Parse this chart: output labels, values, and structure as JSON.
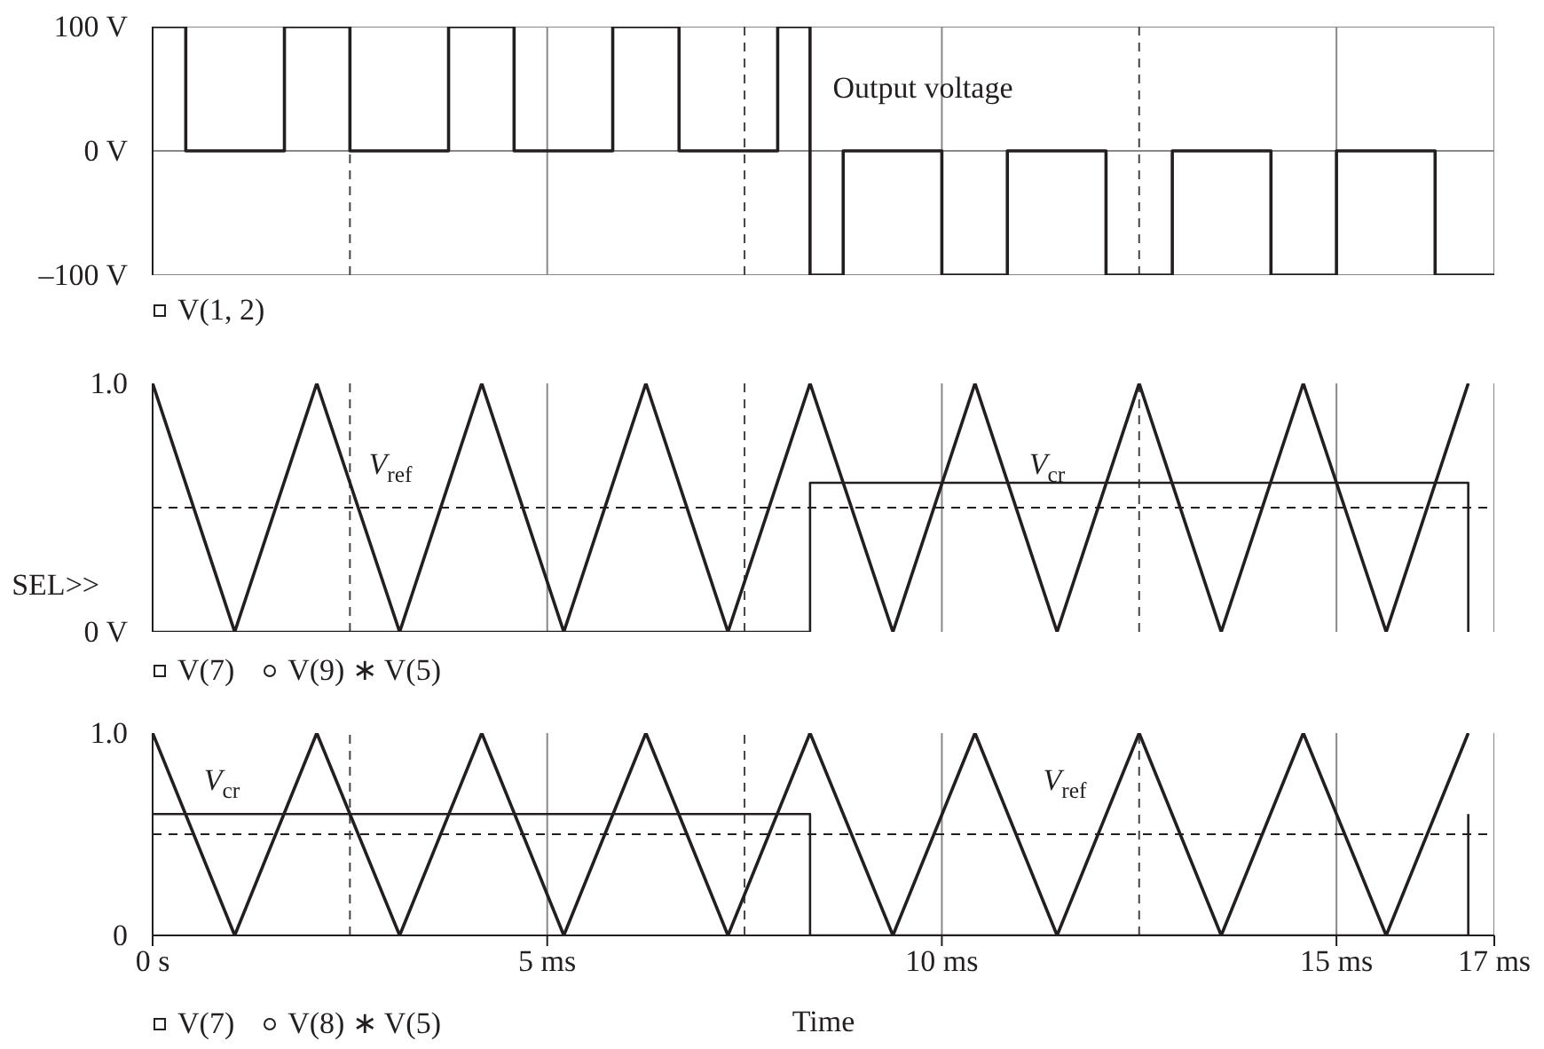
{
  "chart_data": [
    {
      "type": "line",
      "xlim": [
        0,
        17
      ],
      "xticks": [
        {
          "value": 0,
          "label": null
        },
        {
          "value": 5,
          "label": null
        },
        {
          "value": 10,
          "label": null
        },
        {
          "value": 15,
          "label": null
        },
        {
          "value": 17,
          "label": null
        }
      ],
      "ylim": [
        -100,
        100
      ],
      "yticks": [
        {
          "value": 100,
          "label": "100 V"
        },
        {
          "value": 0,
          "label": "0 V"
        },
        {
          "value": -100,
          "label": "–100 V"
        }
      ],
      "tick_labels": "y",
      "grid": true,
      "legend": "bottom left",
      "line_style": "solid",
      "marker": "none",
      "series": [
        {
          "name": "V(1, 2)",
          "color": "#231f20",
          "x": [
            0,
            0.42,
            0.42,
            1.67,
            1.67,
            2.5,
            2.5,
            3.75,
            3.75,
            4.58,
            4.58,
            5.83,
            5.83,
            6.67,
            6.67,
            7.92,
            7.92,
            8.33,
            8.33,
            8.75,
            8.75,
            10,
            10,
            10.83,
            10.83,
            12.08,
            12.08,
            12.92,
            12.92,
            14.17,
            14.17,
            15,
            15,
            16.25,
            16.25,
            17
          ],
          "values": [
            100,
            100,
            0,
            0,
            100,
            100,
            0,
            0,
            100,
            100,
            0,
            0,
            100,
            100,
            0,
            0,
            100,
            100,
            -100,
            -100,
            0,
            0,
            -100,
            -100,
            0,
            0,
            -100,
            -100,
            0,
            0,
            -100,
            -100,
            0,
            0,
            -100,
            -100
          ]
        }
      ],
      "ref_lines": [
        {
          "axis": "x",
          "value": 2.5,
          "line_style": "dashed",
          "color": "#444444"
        },
        {
          "axis": "x",
          "value": 7.5,
          "line_style": "dashed",
          "color": "#444444"
        },
        {
          "axis": "x",
          "value": 12.5,
          "line_style": "dashed",
          "color": "#444444"
        }
      ],
      "annotations": [
        "Output voltage"
      ]
    },
    {
      "type": "line",
      "xlim": [
        0,
        17
      ],
      "xticks": [
        {
          "value": 0,
          "label": null
        },
        {
          "value": 5,
          "label": null
        },
        {
          "value": 10,
          "label": null
        },
        {
          "value": 15,
          "label": null
        },
        {
          "value": 17,
          "label": null
        }
      ],
      "ylim": [
        0,
        1
      ],
      "yticks": [
        {
          "value": 0,
          "label": "0 V"
        },
        {
          "value": 1,
          "label": "1.0"
        }
      ],
      "tick_labels": "y",
      "grid": "x",
      "legend": "bottom left",
      "line_style": "solid",
      "marker": "none",
      "series": [
        {
          "name": "V(7)",
          "color": "#231f20",
          "x": [
            0,
            1.04,
            2.08,
            3.13,
            4.17,
            5.21,
            6.25,
            7.29,
            8.33,
            9.38,
            10.42,
            11.46,
            12.5,
            13.54,
            14.58,
            15.63,
            16.67
          ],
          "values": [
            1,
            0,
            1,
            0,
            1,
            0,
            1,
            0,
            1,
            0,
            1,
            0,
            1,
            0,
            1,
            0,
            1
          ]
        },
        {
          "name": "V(9) ∗ V(5)",
          "color": "#231f20",
          "x": [
            0,
            8.33,
            8.33,
            16.67,
            16.67
          ],
          "values": [
            0,
            0,
            0.6,
            0.6,
            0
          ]
        }
      ],
      "ref_lines": [
        {
          "axis": "y",
          "value": 0.5,
          "line_style": "dashed",
          "color": "#231f20"
        },
        {
          "axis": "x",
          "value": 2.5,
          "line_style": "dashed",
          "color": "#444444"
        },
        {
          "axis": "x",
          "value": 7.5,
          "line_style": "dashed",
          "color": "#444444"
        },
        {
          "axis": "x",
          "value": 12.5,
          "line_style": "dashed",
          "color": "#444444"
        }
      ],
      "annotations": [
        "SEL>>",
        "V$_{ref}$",
        "V$_{cr}$"
      ]
    },
    {
      "type": "line",
      "xlim": [
        0,
        17
      ],
      "xticks": [
        {
          "value": 0,
          "label": "0 s"
        },
        {
          "value": 5,
          "label": "5 ms"
        },
        {
          "value": 10,
          "label": "10 ms"
        },
        {
          "value": 15,
          "label": "15 ms"
        },
        {
          "value": 17,
          "label": "17 ms"
        }
      ],
      "ylim": [
        0,
        1
      ],
      "yticks": [
        0,
        {
          "value": 1,
          "label": "1.0"
        }
      ],
      "xlabel": "Time",
      "grid": "x",
      "legend": "bottom left",
      "line_style": "solid",
      "marker": "none",
      "series": [
        {
          "name": "V(7)",
          "color": "#231f20",
          "x": [
            0,
            1.04,
            2.08,
            3.13,
            4.17,
            5.21,
            6.25,
            7.29,
            8.33,
            9.38,
            10.42,
            11.46,
            12.5,
            13.54,
            14.58,
            15.63,
            16.67
          ],
          "values": [
            1,
            0,
            1,
            0,
            1,
            0,
            1,
            0,
            1,
            0,
            1,
            0,
            1,
            0,
            1,
            0,
            1
          ]
        },
        {
          "name": "V(8) ∗ V(5)",
          "color": "#231f20",
          "x": [
            0,
            8.33,
            8.33,
            16.67,
            16.67
          ],
          "values": [
            0.6,
            0.6,
            0,
            0,
            0.6
          ]
        }
      ],
      "ref_lines": [
        {
          "axis": "y",
          "value": 0.5,
          "line_style": "dashed",
          "color": "#231f20"
        },
        {
          "axis": "x",
          "value": 2.5,
          "line_style": "dashed",
          "color": "#444444"
        },
        {
          "axis": "x",
          "value": 7.5,
          "line_style": "dashed",
          "color": "#444444"
        },
        {
          "axis": "x",
          "value": 12.5,
          "line_style": "dashed",
          "color": "#444444"
        }
      ],
      "annotations": [
        "V$_{cr}$",
        "V$_{ref}$"
      ]
    }
  ]
}
